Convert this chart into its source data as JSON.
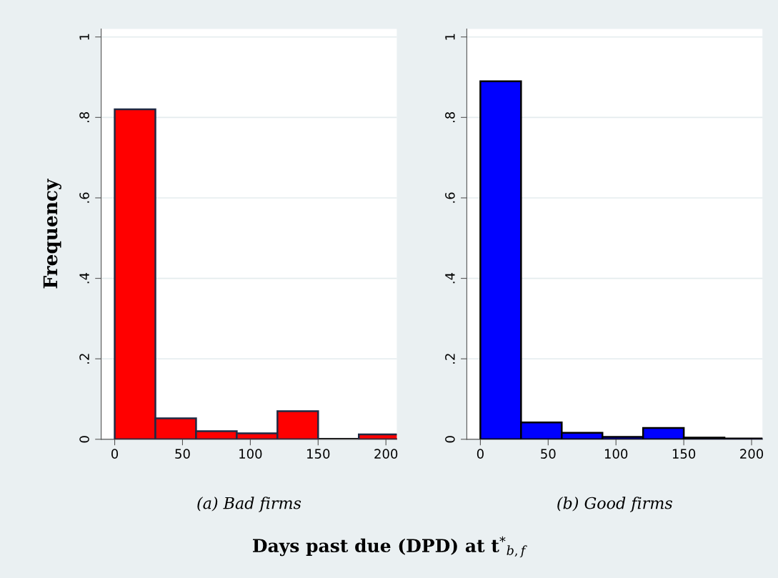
{
  "chart_data": [
    {
      "type": "histogram",
      "title": "(a) Bad firms",
      "ylabel": "Frequency",
      "xlabel": "Days past due (DPD) at t$^{*}$$_{b,f}$",
      "color": "#ff0000",
      "bins": [
        0,
        30,
        60,
        90,
        120,
        150,
        180,
        210
      ],
      "values": [
        0.82,
        0.052,
        0.02,
        0.015,
        0.07,
        null,
        0.012
      ],
      "xlim": [
        -10,
        208
      ],
      "xticks": [
        0,
        50,
        100,
        150,
        200
      ],
      "ylim": [
        0,
        1.02
      ],
      "yticks": [
        {
          "value": 0,
          "label": "0"
        },
        {
          "value": 0.2,
          "label": ".2"
        },
        {
          "value": 0.4,
          "label": ".4"
        },
        {
          "value": 0.6,
          "label": ".6"
        },
        {
          "value": 0.8,
          "label": ".8"
        },
        {
          "value": 1,
          "label": "1"
        }
      ],
      "grid": "y",
      "legend": false
    },
    {
      "type": "histogram",
      "title": "(b) Good firms",
      "color": "#0000ff",
      "bins": [
        0,
        30,
        60,
        90,
        120,
        150,
        180,
        210
      ],
      "values": [
        0.89,
        0.042,
        0.016,
        0.006,
        0.028,
        0.004,
        0.002
      ],
      "xlim": [
        -10,
        208
      ],
      "xticks": [
        0,
        50,
        100,
        150,
        200
      ],
      "ylim": [
        0,
        1.02
      ],
      "yticks": [
        {
          "value": 0,
          "label": "0"
        },
        {
          "value": 0.2,
          "label": ".2"
        },
        {
          "value": 0.4,
          "label": ".4"
        },
        {
          "value": 0.6,
          "label": ".6"
        },
        {
          "value": 0.8,
          "label": ".8"
        },
        {
          "value": 1,
          "label": "1"
        }
      ],
      "grid": "y",
      "legend": false
    }
  ]
}
